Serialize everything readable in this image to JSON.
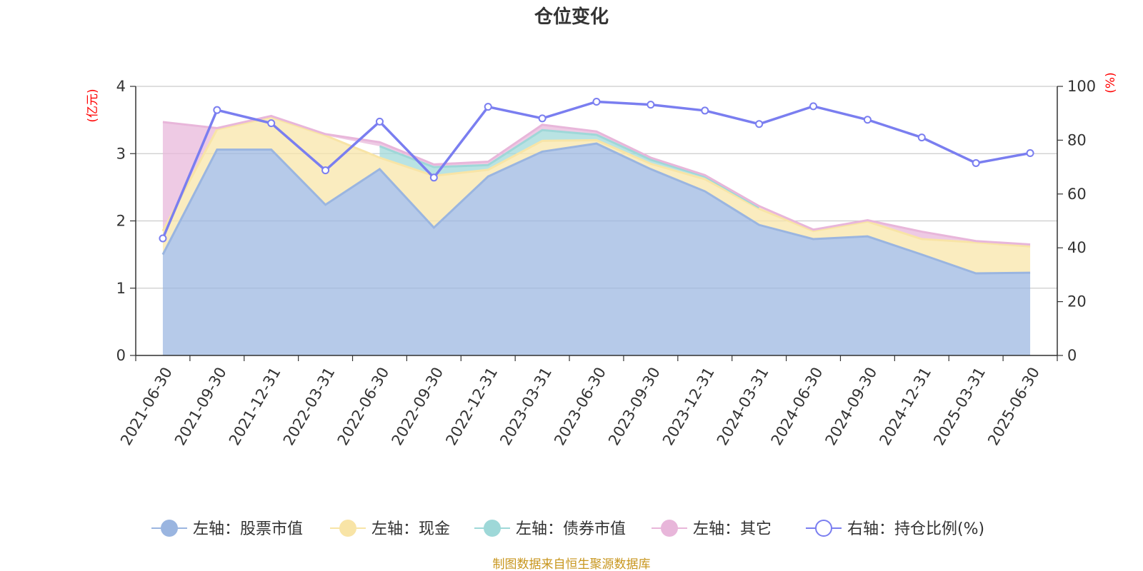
{
  "chart_data": {
    "type": "area",
    "title": "仓位变化",
    "left_axis_unit": "(亿元)",
    "right_axis_unit": "(%)",
    "categories": [
      "2021-06-30",
      "2021-09-30",
      "2021-12-31",
      "2022-03-31",
      "2022-06-30",
      "2022-09-30",
      "2022-12-31",
      "2023-03-31",
      "2023-06-30",
      "2023-09-30",
      "2023-12-31",
      "2024-03-31",
      "2024-06-30",
      "2024-09-30",
      "2024-12-31",
      "2025-03-31",
      "2025-06-30"
    ],
    "left_ylim": [
      0,
      4
    ],
    "left_ticks": [
      "0",
      "1",
      "2",
      "3",
      "4"
    ],
    "right_ylim": [
      0,
      100
    ],
    "right_ticks": [
      "0",
      "20",
      "40",
      "60",
      "80",
      "100"
    ],
    "grid": true,
    "legend_position": "bottom",
    "series": [
      {
        "name": "左轴：股票市值",
        "axis": "left",
        "kind": "area",
        "color": "#9ab5e0",
        "values": [
          1.5,
          3.06,
          3.06,
          2.24,
          2.77,
          1.9,
          2.66,
          3.03,
          3.15,
          2.77,
          2.44,
          1.94,
          1.73,
          1.77,
          1.5,
          1.22,
          1.23
        ]
      },
      {
        "name": "左轴：现金",
        "axis": "left",
        "kind": "area",
        "color": "#f8e4a6",
        "values": [
          0.35,
          0.3,
          0.48,
          1.03,
          0.17,
          0.77,
          0.1,
          0.16,
          0.05,
          0.08,
          0.18,
          0.24,
          0.12,
          0.22,
          0.23,
          0.46,
          0.39
        ]
      },
      {
        "name": "左轴：债券市值",
        "axis": "left",
        "kind": "area",
        "color": "#9ed8d8",
        "values": [
          0,
          0,
          0,
          0,
          0.17,
          0.13,
          0.07,
          0.16,
          0.08,
          0.06,
          0.04,
          0.02,
          0,
          0,
          0,
          0,
          0
        ]
      },
      {
        "name": "左轴：其它",
        "axis": "left",
        "kind": "area",
        "color": "#e8b6da",
        "values": [
          1.62,
          0.02,
          0.02,
          0.02,
          0.06,
          0.04,
          0.05,
          0.08,
          0.05,
          0.03,
          0.02,
          0.02,
          0.02,
          0.02,
          0.11,
          0.02,
          0.03
        ]
      },
      {
        "name": "右轴：持仓比例(%)",
        "axis": "right",
        "kind": "line",
        "color": "#7a7ef0",
        "values": [
          43.5,
          91.2,
          86.3,
          68.8,
          86.9,
          66.1,
          92.4,
          88.1,
          94.3,
          93.2,
          91.0,
          86.0,
          92.6,
          87.6,
          81.0,
          71.5,
          75.2
        ]
      }
    ]
  },
  "source_note": "制图数据来自恒生聚源数据库"
}
